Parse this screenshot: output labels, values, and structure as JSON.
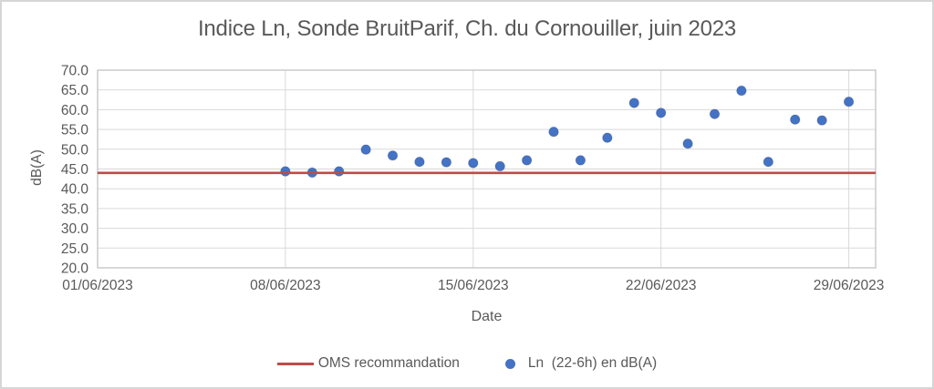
{
  "title": "Indice Ln, Sonde BruitParif, Ch. du Cornouiller, juin 2023",
  "axes": {
    "y_title": "dB(A)",
    "x_title": "Date",
    "y_ticks": [
      "70.0",
      "65.0",
      "60.0",
      "55.0",
      "50.0",
      "45.0",
      "40.0",
      "35.0",
      "30.0",
      "25.0",
      "20.0"
    ],
    "x_ticks": [
      "01/06/2023",
      "08/06/2023",
      "15/06/2023",
      "22/06/2023",
      "29/06/2023"
    ]
  },
  "legend": [
    {
      "label": "OMS recommandation",
      "swatch": "line-icon",
      "color": "#be4b48"
    },
    {
      "label": "Ln  (22-6h) en dB(A)",
      "swatch": "dot-icon",
      "color": "#4472c4"
    }
  ],
  "colors": {
    "marker_blue": "#4472c4",
    "reference_red": "#be4b48",
    "gridline": "#d9d9d9",
    "axis_frame": "#bfbfbf",
    "text_gray": "#595959",
    "outer_border": "#d6d6d6"
  },
  "chart_data": {
    "type": "scatter",
    "title": "Indice Ln, Sonde BruitParif, Ch. du Cornouiller, juin 2023",
    "xlabel": "Date",
    "ylabel": "dB(A)",
    "ylim": [
      20,
      70
    ],
    "y_tick_step": 5,
    "grid": true,
    "legend_position": "bottom",
    "x_axis": {
      "start_day": 1,
      "end_day": 30,
      "tick_days": [
        1,
        8,
        15,
        22,
        29
      ],
      "tick_labels": [
        "01/06/2023",
        "08/06/2023",
        "15/06/2023",
        "22/06/2023",
        "29/06/2023"
      ]
    },
    "series": [
      {
        "name": "Ln  (22-6h) en dB(A)",
        "type": "scatter",
        "color": "#4472c4",
        "dates": [
          "08/06/2023",
          "09/06/2023",
          "10/06/2023",
          "11/06/2023",
          "12/06/2023",
          "13/06/2023",
          "14/06/2023",
          "15/06/2023",
          "16/06/2023",
          "17/06/2023",
          "18/06/2023",
          "19/06/2023",
          "20/06/2023",
          "21/06/2023",
          "22/06/2023",
          "23/06/2023",
          "24/06/2023",
          "25/06/2023",
          "26/06/2023",
          "27/06/2023",
          "28/06/2023",
          "29/06/2023"
        ],
        "days": [
          8,
          9,
          10,
          11,
          12,
          13,
          14,
          15,
          16,
          17,
          18,
          19,
          20,
          21,
          22,
          23,
          24,
          25,
          26,
          27,
          28,
          29
        ],
        "values": [
          44.4,
          44.1,
          44.4,
          49.9,
          48.4,
          46.8,
          46.7,
          46.5,
          45.7,
          47.2,
          54.4,
          47.2,
          52.9,
          61.7,
          59.2,
          51.4,
          58.9,
          64.8,
          46.8,
          57.5,
          57.3,
          62.0
        ]
      },
      {
        "name": "OMS recommandation",
        "type": "hline",
        "color": "#be4b48",
        "value": 44.0
      }
    ]
  }
}
